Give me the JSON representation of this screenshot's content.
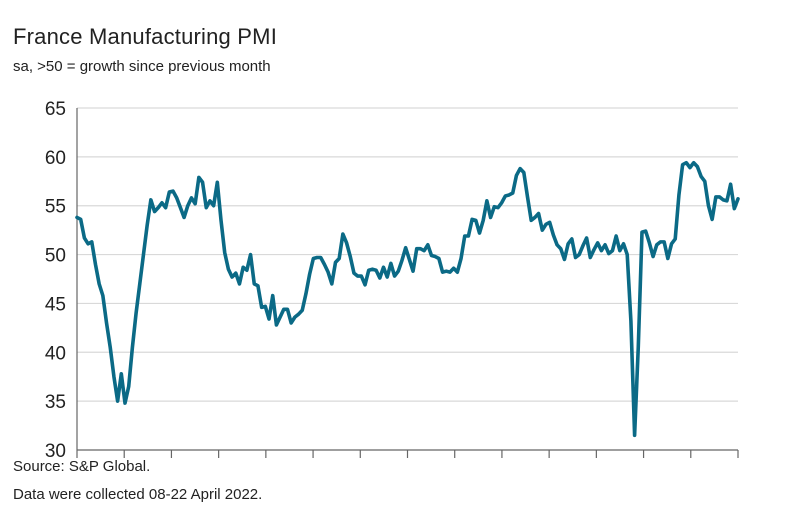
{
  "header": {
    "title": "France Manufacturing PMI",
    "subtitle": "sa, >50 = growth since previous month"
  },
  "footer": {
    "source": "Source: S&P Global.",
    "note": "Data were collected 08-22 April 2022."
  },
  "colors": {
    "line": "#0b6a86",
    "grid": "#d9d9d9",
    "axis": "#666666",
    "text": "#222222"
  },
  "chart_data": {
    "type": "line",
    "title": "France Manufacturing PMI",
    "subtitle": "sa, >50 = growth since previous month",
    "xlabel": "",
    "ylabel": "",
    "ylim": [
      30,
      65
    ],
    "yticks": [
      30,
      35,
      40,
      45,
      50,
      55,
      60,
      65
    ],
    "x_tick_count": 15,
    "grid": true,
    "legend": "none",
    "series": [
      {
        "name": "France Manufacturing PMI",
        "values": [
          53.8,
          53.6,
          51.7,
          51.1,
          51.3,
          49.0,
          47.0,
          45.8,
          43.0,
          40.5,
          37.5,
          35.0,
          37.8,
          34.8,
          36.5,
          40.5,
          44.0,
          47.0,
          50.0,
          53.0,
          55.6,
          54.4,
          54.8,
          55.3,
          54.8,
          56.4,
          56.5,
          55.8,
          54.8,
          53.8,
          55.0,
          55.8,
          55.2,
          57.9,
          57.4,
          54.8,
          55.5,
          55.0,
          57.4,
          53.5,
          50.2,
          48.5,
          47.7,
          48.1,
          47.0,
          48.7,
          48.4,
          50.0,
          47.0,
          46.8,
          44.6,
          44.7,
          43.4,
          45.8,
          42.8,
          43.6,
          44.4,
          44.4,
          43.0,
          43.6,
          43.9,
          44.3,
          46.0,
          48.0,
          49.6,
          49.7,
          49.7,
          49.0,
          48.2,
          47.0,
          49.2,
          49.6,
          52.1,
          51.2,
          49.8,
          48.1,
          47.8,
          47.8,
          46.9,
          48.4,
          48.5,
          48.4,
          47.6,
          48.7,
          47.7,
          49.1,
          47.8,
          48.3,
          49.4,
          50.7,
          49.5,
          48.3,
          50.6,
          50.6,
          50.4,
          51.0,
          49.9,
          49.8,
          49.6,
          48.2,
          48.3,
          48.2,
          48.6,
          48.2,
          49.6,
          51.9,
          51.9,
          53.6,
          53.5,
          52.2,
          53.5,
          55.5,
          53.8,
          54.9,
          54.8,
          55.3,
          56.0,
          56.1,
          56.3,
          58.1,
          58.8,
          58.4,
          55.9,
          53.5,
          53.8,
          54.2,
          52.5,
          53.1,
          53.3,
          52.0,
          51.0,
          50.6,
          49.5,
          51.1,
          51.6,
          49.7,
          50.0,
          50.9,
          51.7,
          49.7,
          50.5,
          51.2,
          50.4,
          51.0,
          50.1,
          50.4,
          51.9,
          50.4,
          51.1,
          50.0,
          43.2,
          31.5,
          40.6,
          52.3,
          52.4,
          51.2,
          49.8,
          51.0,
          51.3,
          51.3,
          49.6,
          51.1,
          51.6,
          56.1,
          59.2,
          59.4,
          58.9,
          59.4,
          59.0,
          58.0,
          57.5,
          55.0,
          53.6,
          55.9,
          55.9,
          55.6,
          55.5,
          57.2,
          54.7,
          55.7
        ]
      }
    ]
  }
}
